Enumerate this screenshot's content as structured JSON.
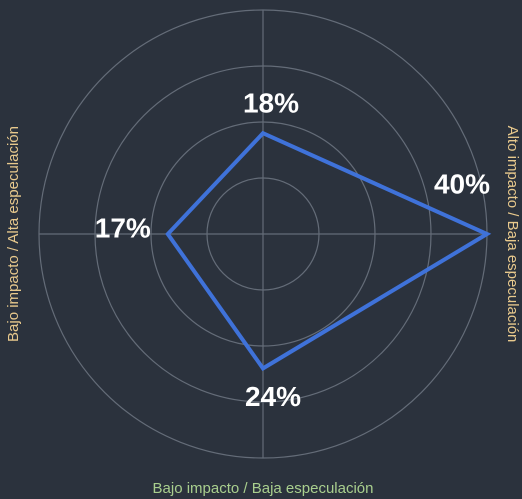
{
  "chart_data": {
    "type": "radar",
    "categories": [
      null,
      "Alto impacto / Baja especulación",
      "Bajo impacto / Baja especulación",
      "Bajo impacto / Alta especulación"
    ],
    "values": [
      18,
      40,
      24,
      17
    ],
    "value_labels": [
      "18%",
      "40%",
      "24%",
      "17%"
    ],
    "color": "#3f72d9",
    "category_colors": [
      null,
      "#e8c98d",
      "#a9cf8e",
      "#e8c98d"
    ],
    "rlim": [
      0,
      40
    ],
    "rticks": [
      10,
      20,
      30,
      40
    ],
    "grid": true
  }
}
